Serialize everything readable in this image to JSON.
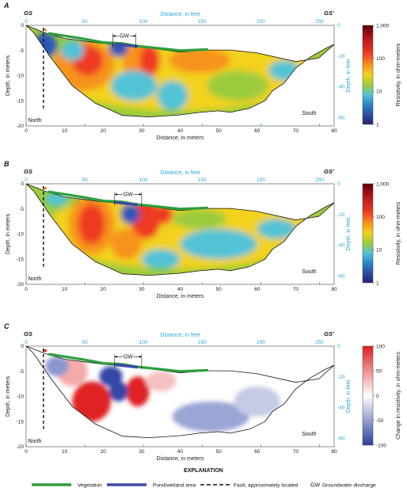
{
  "panels": [
    {
      "letter": "A",
      "top_label": "Distance, in feet",
      "bottom_label": "Distance, in meters",
      "left_label": "Depth, in meters",
      "right_label": "Depth, in feet",
      "colorbar_label": "Resistivity, in ohm-meters",
      "colorbar_ticks": [
        "1,000",
        "100",
        "10",
        "1"
      ],
      "type": "resistivity"
    },
    {
      "letter": "B",
      "top_label": "Distance, in feet",
      "bottom_label": "Distance, in meters",
      "left_label": "Depth, in meters",
      "right_label": "Depth, in feet",
      "colorbar_label": "Resistivity, in ohm-meters",
      "colorbar_ticks": [
        "1,000",
        "100",
        "10",
        "1"
      ],
      "type": "resistivity"
    },
    {
      "letter": "C",
      "top_label": "Distance, in feet",
      "bottom_label": "Distance, in meters",
      "left_label": "Depth, in meters",
      "right_label": "Depth, in feet",
      "colorbar_label": "Change in resistivity, in ohm-meters",
      "colorbar_ticks": [
        "100",
        "50",
        "0",
        "-50",
        "-100"
      ],
      "type": "change"
    }
  ],
  "common": {
    "gs_left": "GS",
    "gs_right": "GS'",
    "north": "North",
    "south": "South",
    "gw": "GW",
    "meter_ticks": [
      "0",
      "10",
      "20",
      "30",
      "40",
      "50",
      "60",
      "70",
      "80"
    ],
    "feet_ticks": [
      "0",
      "50",
      "100",
      "150",
      "200",
      "250"
    ],
    "depth_m_ticks": [
      "0",
      "-5",
      "-10",
      "-15",
      "-20"
    ],
    "depth_ft_ticks": [
      "0",
      "-20",
      "-40",
      "-60"
    ]
  },
  "legend": {
    "title": "EXPLANATION",
    "vegetation": "Vegetation",
    "pond": "Pond/wetland area",
    "fault": "Fault, approximately located",
    "gw_abbr": "GW",
    "gw_text": "Groundwater discharge",
    "colors": {
      "vegetation": "#2e9e3e",
      "pond": "#3b4aa8"
    }
  }
}
